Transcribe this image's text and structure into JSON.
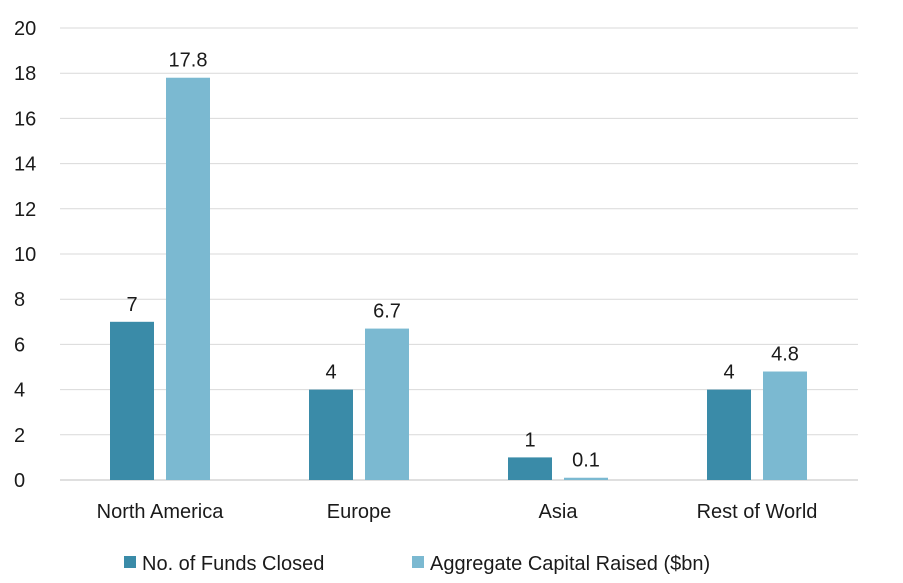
{
  "chart_data": {
    "type": "bar",
    "title": "",
    "xlabel": "",
    "ylabel": "",
    "ylim": [
      0,
      20
    ],
    "yticks": [
      0,
      2,
      4,
      6,
      8,
      10,
      12,
      14,
      16,
      18,
      20
    ],
    "grid": true,
    "legend_position": "bottom",
    "categories": [
      "North America",
      "Europe",
      "Asia",
      "Rest of World"
    ],
    "series": [
      {
        "name": "No. of Funds Closed",
        "color": "#3a8ba8",
        "values": [
          7,
          4,
          1,
          4
        ],
        "labels": [
          "7",
          "4",
          "1",
          "4"
        ]
      },
      {
        "name": "Aggregate Capital Raised ($bn)",
        "color": "#7bb9d1",
        "values": [
          17.8,
          6.7,
          0.1,
          4.8
        ],
        "labels": [
          "17.8",
          "6.7",
          "0.1",
          "4.8"
        ]
      }
    ]
  }
}
